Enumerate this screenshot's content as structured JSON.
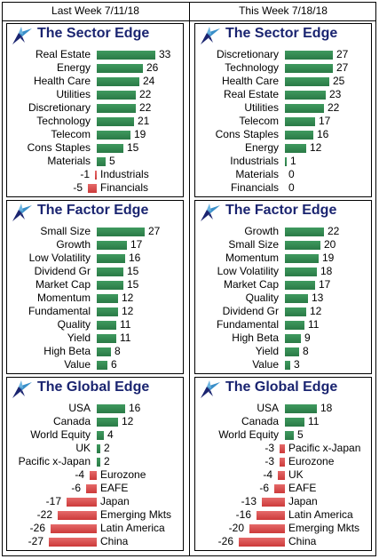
{
  "columns": [
    {
      "header": "Last Week 7/11/18",
      "panels": [
        {
          "title": "The Sector Edge",
          "chart_data": {
            "type": "bar",
            "categories": [
              "Real Estate",
              "Energy",
              "Health Care",
              "Utilities",
              "Discretionary",
              "Technology",
              "Telecom",
              "Cons Staples",
              "Materials",
              "Industrials",
              "Financials"
            ],
            "values": [
              33,
              26,
              24,
              22,
              22,
              21,
              19,
              15,
              5,
              -1,
              -5
            ]
          }
        },
        {
          "title": "The Factor Edge",
          "chart_data": {
            "type": "bar",
            "categories": [
              "Small Size",
              "Growth",
              "Low Volatility",
              "Dividend Gr",
              "Market Cap",
              "Momentum",
              "Fundamental",
              "Quality",
              "Yield",
              "High Beta",
              "Value"
            ],
            "values": [
              27,
              17,
              16,
              15,
              15,
              12,
              12,
              11,
              11,
              8,
              6
            ]
          }
        },
        {
          "title": "The Global Edge",
          "chart_data": {
            "type": "bar",
            "categories": [
              "USA",
              "Canada",
              "World Equity",
              "UK",
              "Pacific x-Japan",
              "Eurozone",
              "EAFE",
              "Japan",
              "Emerging Mkts",
              "Latin America",
              "China"
            ],
            "values": [
              16,
              12,
              4,
              2,
              2,
              -4,
              -6,
              -17,
              -22,
              -26,
              -27
            ]
          }
        }
      ]
    },
    {
      "header": "This Week 7/18/18",
      "panels": [
        {
          "title": "The Sector Edge",
          "chart_data": {
            "type": "bar",
            "categories": [
              "Discretionary",
              "Technology",
              "Health Care",
              "Real Estate",
              "Utilities",
              "Telecom",
              "Cons Staples",
              "Energy",
              "Industrials",
              "Materials",
              "Financials"
            ],
            "values": [
              27,
              27,
              25,
              23,
              22,
              17,
              16,
              12,
              1,
              0,
              0
            ]
          }
        },
        {
          "title": "The Factor Edge",
          "chart_data": {
            "type": "bar",
            "categories": [
              "Growth",
              "Small Size",
              "Momentum",
              "Low Volatility",
              "Market Cap",
              "Quality",
              "Dividend Gr",
              "Fundamental",
              "High Beta",
              "Yield",
              "Value"
            ],
            "values": [
              22,
              20,
              19,
              18,
              17,
              13,
              12,
              11,
              9,
              8,
              3
            ]
          }
        },
        {
          "title": "The Global Edge",
          "chart_data": {
            "type": "bar",
            "categories": [
              "USA",
              "Canada",
              "World Equity",
              "Pacific x-Japan",
              "Eurozone",
              "UK",
              "EAFE",
              "Japan",
              "Latin America",
              "Emerging Mkts",
              "China"
            ],
            "values": [
              18,
              11,
              5,
              -3,
              -3,
              -4,
              -6,
              -13,
              -16,
              -20,
              -26
            ]
          }
        }
      ]
    }
  ],
  "colors": {
    "positive": "#2e8b57",
    "negative": "#d94848",
    "title": "#1a2470"
  },
  "logo_icon": "compass-star-icon"
}
